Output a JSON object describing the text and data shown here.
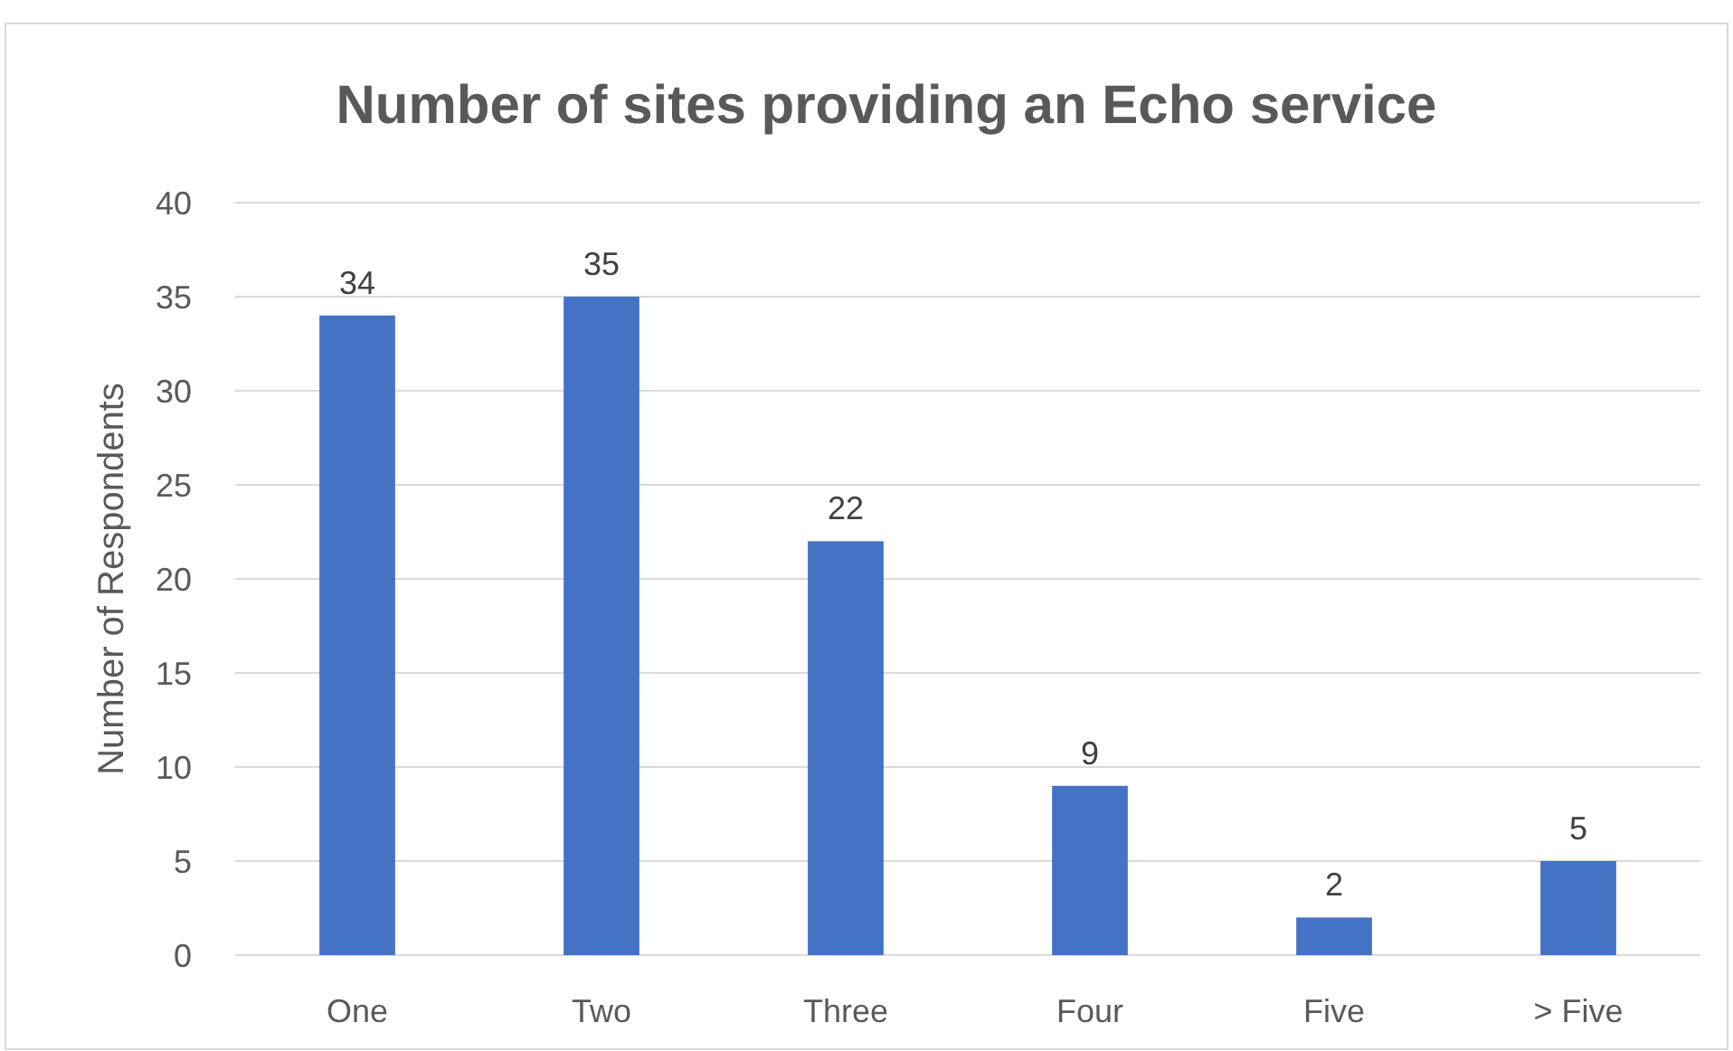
{
  "chart_data": {
    "type": "bar",
    "title": "Number of sites providing an Echo service",
    "ylabel": "Number of Respondents",
    "categories": [
      "One",
      "Two",
      "Three",
      "Four",
      "Five",
      "> Five"
    ],
    "values": [
      34,
      35,
      22,
      9,
      2,
      5
    ],
    "color": "#4472c4",
    "ylim": [
      0,
      40
    ],
    "yticks": [
      0,
      5,
      10,
      15,
      20,
      25,
      30,
      35,
      40
    ],
    "grid": "y",
    "data_labels": true
  }
}
